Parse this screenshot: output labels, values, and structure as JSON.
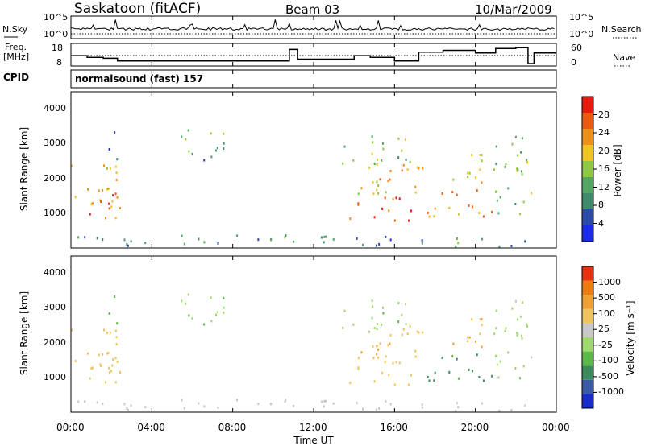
{
  "header": {
    "radar": "Saskatoon (fitACF)",
    "beam": "Beam 03",
    "date": "10/Mar/2009"
  },
  "noise_panel": {
    "left_label": "N.Sky",
    "right_label": "N.Search",
    "ticks_left": [
      "10^5",
      "10^0"
    ],
    "ticks_right": [
      "10^5",
      "10^0"
    ]
  },
  "freq_panel": {
    "left_label_1": "Freq.",
    "left_label_2": "[MHz]",
    "right_label": "Nave",
    "ticks_left": [
      "18",
      "8"
    ],
    "ticks_right": [
      "60",
      "0"
    ]
  },
  "cpid": {
    "label": "CPID",
    "mode": "normalsound (fast) 157"
  },
  "power_panel": {
    "ylabel": "Slant Range [km]",
    "y_ticks": [
      "4000",
      "3000",
      "2000",
      "1000"
    ],
    "colorbar_label": "Power [dB]",
    "colorbar_ticks": [
      "28",
      "24",
      "20",
      "16",
      "12",
      "8",
      "4"
    ],
    "colors": [
      "#1b2be8",
      "#2b4aa8",
      "#3e8a6a",
      "#53a763",
      "#8ec93f",
      "#f0c420",
      "#f09018",
      "#ec5a10",
      "#e8180c"
    ]
  },
  "velocity_panel": {
    "ylabel": "Slant Range [km]",
    "y_ticks": [
      "4000",
      "3000",
      "2000",
      "1000"
    ],
    "colorbar_label": "Velocity [m s⁻¹]",
    "colorbar_ticks": [
      "1000",
      "500",
      "100",
      "25",
      "-25",
      "-100",
      "-500",
      "-1000"
    ],
    "colors": [
      "#1a2cc8",
      "#3a5aa8",
      "#3c8a5c",
      "#5cb848",
      "#a0d870",
      "#c8c8c8",
      "#f0c45a",
      "#f0a030",
      "#ee7a10",
      "#e83010"
    ]
  },
  "x_axis": {
    "label": "Time UT",
    "ticks": [
      "00:00",
      "04:00",
      "08:00",
      "12:00",
      "16:00",
      "20:00",
      "00:00"
    ]
  },
  "chart_data": {
    "type": "heatmap",
    "x_range_hours": [
      0,
      24
    ],
    "y_range_km": [
      180,
      4600
    ],
    "frequency_steps": [
      {
        "start": 0.0,
        "end": 0.8,
        "mhz": 12.5
      },
      {
        "start": 0.8,
        "end": 1.6,
        "mhz": 11.5
      },
      {
        "start": 1.6,
        "end": 2.3,
        "mhz": 11.0
      },
      {
        "start": 2.3,
        "end": 10.8,
        "mhz": 9.5
      },
      {
        "start": 10.8,
        "end": 11.2,
        "mhz": 16.0
      },
      {
        "start": 11.2,
        "end": 14.0,
        "mhz": 10.5
      },
      {
        "start": 14.0,
        "end": 14.8,
        "mhz": 12.5
      },
      {
        "start": 14.8,
        "end": 16.0,
        "mhz": 11.5
      },
      {
        "start": 16.0,
        "end": 17.2,
        "mhz": 9.5
      },
      {
        "start": 17.2,
        "end": 18.4,
        "mhz": 14.5
      },
      {
        "start": 18.4,
        "end": 20.0,
        "mhz": 15.5
      },
      {
        "start": 20.0,
        "end": 21.0,
        "mhz": 14.0
      },
      {
        "start": 21.0,
        "end": 22.0,
        "mhz": 16.5
      },
      {
        "start": 22.0,
        "end": 22.6,
        "mhz": 17.0
      },
      {
        "start": 22.6,
        "end": 22.9,
        "mhz": 8.0
      },
      {
        "start": 22.9,
        "end": 24.0,
        "mhz": 14.0
      }
    ],
    "scatter_regions": [
      {
        "t0": 0.0,
        "t1": 2.4,
        "r0": 900,
        "r1": 2600,
        "power": 20,
        "velocity": -150
      },
      {
        "t0": 0.8,
        "t1": 2.2,
        "r0": 1100,
        "r1": 1700,
        "power": 28,
        "velocity": -300
      },
      {
        "t0": 1.8,
        "t1": 2.3,
        "r0": 2400,
        "r1": 3500,
        "power": 8,
        "velocity": 25
      },
      {
        "t0": 5.3,
        "t1": 7.8,
        "r0": 2600,
        "r1": 3500,
        "power": 10,
        "velocity": 10
      },
      {
        "t0": 13.5,
        "t1": 16.8,
        "r0": 900,
        "r1": 1600,
        "power": 26,
        "velocity": -200
      },
      {
        "t0": 13.5,
        "t1": 17.5,
        "r0": 1600,
        "r1": 2600,
        "power": 18,
        "velocity": -400
      },
      {
        "t0": 13.4,
        "t1": 15.5,
        "r0": 2400,
        "r1": 3400,
        "power": 14,
        "velocity": 10
      },
      {
        "t0": 15.0,
        "t1": 16.6,
        "r0": 2600,
        "r1": 3300,
        "power": 12,
        "velocity": 0
      },
      {
        "t0": 17.5,
        "t1": 20.8,
        "r0": 1000,
        "r1": 1800,
        "power": 22,
        "velocity": 150
      },
      {
        "t0": 18.8,
        "t1": 20.5,
        "r0": 1800,
        "r1": 3000,
        "power": 16,
        "velocity": -600
      },
      {
        "t0": 20.8,
        "t1": 22.8,
        "r0": 1000,
        "r1": 3400,
        "power": 12,
        "velocity": 0
      },
      {
        "t0": 0.0,
        "t1": 22.8,
        "r0": 180,
        "r1": 500,
        "power": 8,
        "velocity": -60
      }
    ]
  }
}
